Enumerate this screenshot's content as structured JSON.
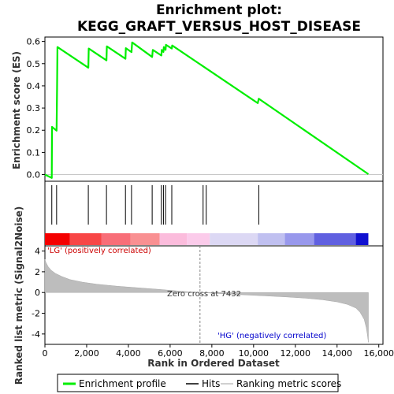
{
  "chart_data": {
    "type": "line",
    "title_line1": "Enrichment plot:",
    "title_line2": "KEGG_GRAFT_VERSUS_HOST_DISEASE",
    "top_panel": {
      "ylabel": "Enrichment score (ES)",
      "ylim": [
        -0.03,
        0.62
      ],
      "yticks": [
        "0.0",
        "0.1",
        "0.2",
        "0.3",
        "0.4",
        "0.5",
        "0.6"
      ],
      "series": [
        {
          "name": "Enrichment profile",
          "color": "#00ee00",
          "x": [
            0,
            330,
            340,
            560,
            580,
            600,
            2080,
            2100,
            2950,
            2970,
            3860,
            3880,
            4150,
            4180,
            5140,
            5170,
            5580,
            5600,
            5680,
            5700,
            5780,
            5800,
            6080,
            6100,
            10200,
            10250,
            15500
          ],
          "y": [
            0.0,
            -0.015,
            0.215,
            0.198,
            0.385,
            0.575,
            0.482,
            0.568,
            0.515,
            0.578,
            0.522,
            0.57,
            0.552,
            0.596,
            0.53,
            0.562,
            0.537,
            0.562,
            0.553,
            0.575,
            0.562,
            0.585,
            0.568,
            0.582,
            0.322,
            0.342,
            0.002
          ]
        }
      ]
    },
    "hits_panel": {
      "hits": [
        330,
        560,
        2080,
        2950,
        3860,
        4150,
        5140,
        5580,
        5680,
        5780,
        6080,
        7580,
        7730,
        10250
      ]
    },
    "bar_segments": [
      {
        "from": 0,
        "to": 1200,
        "color": "#f40000"
      },
      {
        "from": 1200,
        "to": 2700,
        "color": "#f84646"
      },
      {
        "from": 2700,
        "to": 4100,
        "color": "#f86e78"
      },
      {
        "from": 4100,
        "to": 5500,
        "color": "#f99092"
      },
      {
        "from": 5500,
        "to": 6800,
        "color": "#fbbcdc"
      },
      {
        "from": 6800,
        "to": 7900,
        "color": "#fbcbea"
      },
      {
        "from": 7900,
        "to": 10200,
        "color": "#dcd8f4"
      },
      {
        "from": 10200,
        "to": 11500,
        "color": "#c0c0f0"
      },
      {
        "from": 11500,
        "to": 12900,
        "color": "#9898ec"
      },
      {
        "from": 12900,
        "to": 14900,
        "color": "#6060e0"
      },
      {
        "from": 14900,
        "to": 15500,
        "color": "#1010d0"
      }
    ],
    "bottom_panel": {
      "ylabel": "Ranked list metric (Signal2Noise)",
      "xlabel": "Rank in Ordered Dataset",
      "ylim": [
        -5,
        4.5
      ],
      "yticks": [
        "-4",
        "-2",
        "0",
        "2",
        "4"
      ],
      "xticks": [
        "0",
        "2,000",
        "4,000",
        "6,000",
        "8,000",
        "10,000",
        "12,000",
        "14,000",
        "16,000"
      ],
      "xlim": [
        0,
        16200
      ],
      "metric_x": [
        0,
        50,
        150,
        300,
        500,
        800,
        1200,
        1800,
        2500,
        3500,
        4500,
        5500,
        6500,
        7432,
        8500,
        9500,
        10500,
        11500,
        12500,
        13300,
        14000,
        14500,
        14900,
        15100,
        15300,
        15400,
        15450,
        15500
      ],
      "metric_y": [
        3.2,
        2.9,
        2.5,
        2.15,
        1.85,
        1.55,
        1.25,
        1.0,
        0.8,
        0.6,
        0.45,
        0.3,
        0.12,
        0.0,
        -0.12,
        -0.22,
        -0.32,
        -0.42,
        -0.55,
        -0.7,
        -0.9,
        -1.15,
        -1.5,
        -1.9,
        -2.6,
        -3.4,
        -4.0,
        -4.8
      ],
      "label_pos": "'LG' (positively correlated)",
      "label_neg": "'HG' (negatively correlated)",
      "zero_cross_label": "Zero cross at 7432",
      "zero_cross": 7432
    },
    "legend": [
      {
        "name": "Enrichment profile",
        "color": "#00ee00"
      },
      {
        "name": "Hits",
        "color": "#000000"
      },
      {
        "name": "Ranking metric scores",
        "color": "#c0c0c0"
      }
    ]
  }
}
